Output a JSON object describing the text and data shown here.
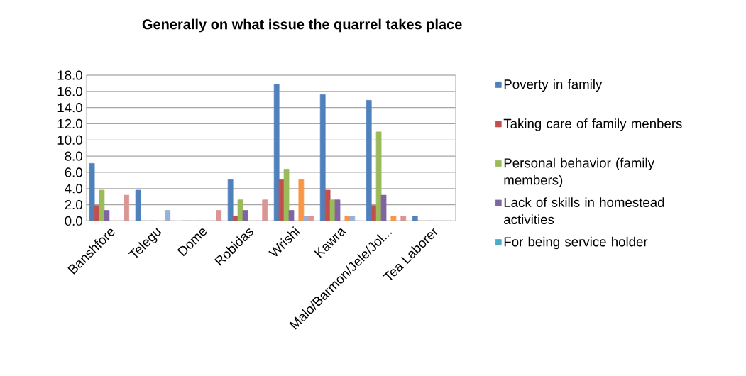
{
  "chart_data": {
    "type": "bar",
    "title": "Generally on what issue the quarrel takes place",
    "categories": [
      "Banshfore",
      "Telegu",
      "Dome",
      "Robidas",
      "Wrishi",
      "Kawra",
      "Malo/Barmon/Jele/Jol...",
      "Tea Laborer"
    ],
    "series": [
      {
        "name": "Poverty in family",
        "color": "#4f81bd",
        "values": [
          7.1,
          3.8,
          0,
          5.1,
          16.9,
          15.6,
          14.9,
          0.6
        ]
      },
      {
        "name": "Taking care of family menbers",
        "color": "#c0504d",
        "values": [
          1.9,
          0,
          0,
          0.6,
          5.1,
          3.8,
          1.9,
          0
        ]
      },
      {
        "name": "Personal behavior (family members)",
        "color": "#9bbb59",
        "values": [
          3.8,
          0,
          0,
          2.6,
          6.4,
          2.6,
          11.0,
          0
        ]
      },
      {
        "name": "Lack of skills in homestead activities",
        "color": "#8064a2",
        "values": [
          1.3,
          0,
          0,
          1.3,
          1.3,
          2.6,
          3.2,
          0
        ]
      },
      {
        "name": "For being service holder",
        "color": "#4bacc6",
        "values": [
          0,
          0,
          0,
          0,
          0,
          0,
          0,
          0
        ]
      },
      {
        "color": "#f79646",
        "values": [
          0,
          0,
          0,
          0,
          5.1,
          0.6,
          0.6,
          0
        ]
      },
      {
        "color": "#95b3d7",
        "values": [
          0,
          1.3,
          0,
          0,
          0.6,
          0.6,
          0,
          0
        ]
      },
      {
        "color": "#da9694",
        "values": [
          3.2,
          0,
          1.3,
          2.6,
          0.6,
          0,
          0.6,
          0
        ]
      }
    ],
    "ylim": [
      0,
      18
    ],
    "yticks": [
      {
        "value": 0,
        "label": "0.0"
      },
      {
        "value": 2,
        "label": "2.0"
      },
      {
        "value": 4,
        "label": "4.0"
      },
      {
        "value": 6,
        "label": "6.0"
      },
      {
        "value": 8,
        "label": "8.0"
      },
      {
        "value": 10,
        "label": "10.0"
      },
      {
        "value": 12,
        "label": "12.0"
      },
      {
        "value": 14,
        "label": "14.0"
      },
      {
        "value": 16,
        "label": "16.0"
      },
      {
        "value": 18,
        "label": "18.0"
      }
    ],
    "grid": "y",
    "legend": "right"
  }
}
